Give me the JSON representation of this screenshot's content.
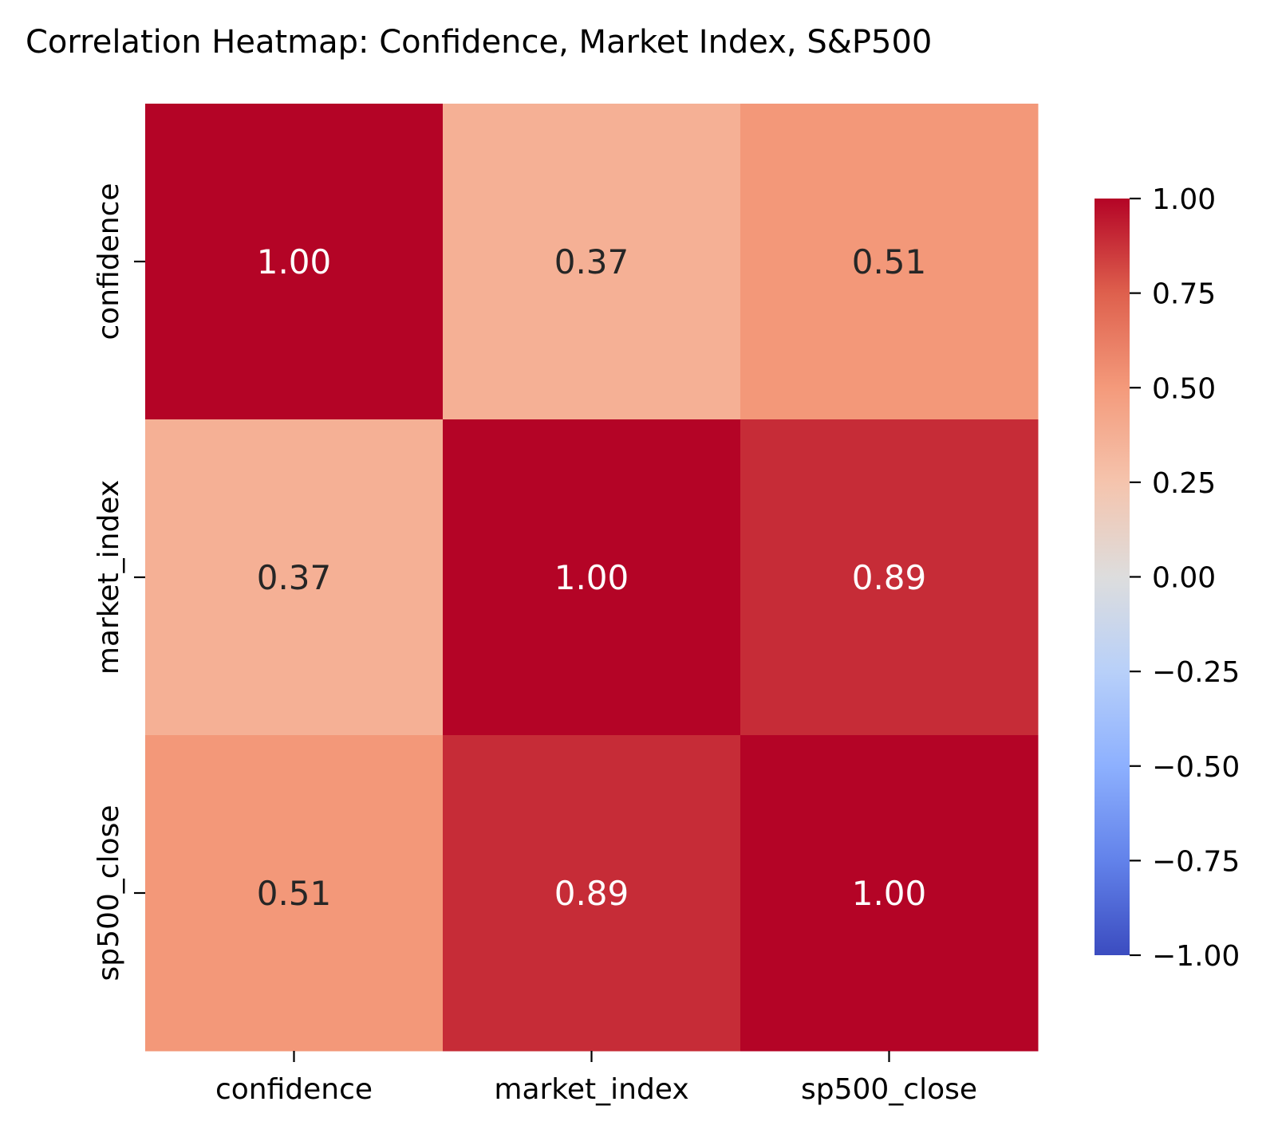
{
  "chart_data": {
    "type": "heatmap",
    "title": "Correlation Heatmap: Confidence, Market Index, S&P500",
    "xlabel": "",
    "ylabel": "",
    "rows": [
      "confidence",
      "market_index",
      "sp500_close"
    ],
    "columns": [
      "confidence",
      "market_index",
      "sp500_close"
    ],
    "values": [
      [
        1.0,
        0.37,
        0.51
      ],
      [
        0.37,
        1.0,
        0.89
      ],
      [
        0.51,
        0.89,
        1.0
      ]
    ],
    "annotation_format": "2 decimals",
    "colormap": "coolwarm",
    "vmin": -1.0,
    "vmax": 1.0,
    "colorbar": {
      "ticks": [
        1.0,
        0.75,
        0.5,
        0.25,
        0.0,
        -0.25,
        -0.5,
        -0.75,
        -1.0
      ],
      "tick_labels": [
        "1.00",
        "0.75",
        "0.50",
        "0.25",
        "0.00",
        "−0.25",
        "−0.50",
        "−0.75",
        "−1.00"
      ],
      "placement": "right"
    }
  }
}
